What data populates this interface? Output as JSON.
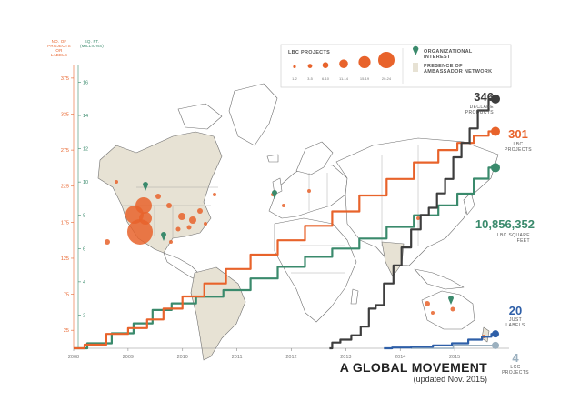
{
  "chart_data": {
    "type": "line",
    "title": "A GLOBAL MOVEMENT",
    "subtitle": "(updated Nov. 2015)",
    "left_axis_title": [
      "NO. OF",
      "PROJECTS",
      "OR",
      "LABELS"
    ],
    "right_axis_title": [
      "SQ. FT.",
      "(MILLIONS)"
    ],
    "x_ticks": [
      "2008",
      "2009",
      "2010",
      "2011",
      "2012",
      "2013",
      "2014",
      "2015"
    ],
    "xlim": [
      2008,
      2015.9
    ],
    "y_left": {
      "ticks": [
        25,
        75,
        125,
        175,
        225,
        275,
        325,
        375
      ],
      "ylim": [
        0,
        390
      ]
    },
    "y_right": {
      "ticks": [
        2,
        4,
        6,
        8,
        10,
        12,
        14,
        16
      ],
      "ylim": [
        0,
        16.9
      ]
    },
    "series": [
      {
        "value_label": "301",
        "label_lines": [
          "LBC",
          "PROJECTS"
        ],
        "color": "#e8632b",
        "axis": "left",
        "points": [
          [
            2008,
            0
          ],
          [
            2008.4,
            5
          ],
          [
            2008.8,
            20
          ],
          [
            2009.2,
            28
          ],
          [
            2009.5,
            40
          ],
          [
            2009.8,
            55
          ],
          [
            2010.2,
            72
          ],
          [
            2010.6,
            90
          ],
          [
            2011,
            110
          ],
          [
            2011.5,
            130
          ],
          [
            2012,
            150
          ],
          [
            2012.5,
            170
          ],
          [
            2013,
            190
          ],
          [
            2013.5,
            212
          ],
          [
            2014,
            235
          ],
          [
            2014.5,
            258
          ],
          [
            2014.9,
            275
          ],
          [
            2015.2,
            285
          ],
          [
            2015.5,
            295
          ],
          [
            2015.75,
            301
          ]
        ]
      },
      {
        "value_label": "10,856,352",
        "label_lines": [
          "LBC SQUARE",
          "FEET"
        ],
        "color": "#3a8a6c",
        "axis": "right",
        "points": [
          [
            2008,
            0
          ],
          [
            2008.5,
            0.3
          ],
          [
            2008.9,
            0.9
          ],
          [
            2009.3,
            1.5
          ],
          [
            2009.6,
            2.3
          ],
          [
            2010,
            2.7
          ],
          [
            2010.5,
            3.1
          ],
          [
            2011,
            3.5
          ],
          [
            2011.5,
            4.2
          ],
          [
            2012,
            4.9
          ],
          [
            2012.5,
            5.5
          ],
          [
            2013,
            6.0
          ],
          [
            2013.5,
            6.6
          ],
          [
            2014,
            7.3
          ],
          [
            2014.5,
            8.0
          ],
          [
            2014.9,
            8.6
          ],
          [
            2015.2,
            9.3
          ],
          [
            2015.5,
            10.2
          ],
          [
            2015.75,
            10.86
          ]
        ]
      },
      {
        "value_label": "346",
        "label_lines": [
          "DECLARE",
          "PRODUCTS"
        ],
        "color": "#3d3d3d",
        "axis": "left",
        "points": [
          [
            2012.7,
            0
          ],
          [
            2012.8,
            8
          ],
          [
            2013,
            12
          ],
          [
            2013.2,
            18
          ],
          [
            2013.35,
            30
          ],
          [
            2013.5,
            55
          ],
          [
            2013.6,
            60
          ],
          [
            2013.8,
            90
          ],
          [
            2013.95,
            115
          ],
          [
            2014.1,
            140
          ],
          [
            2014.3,
            165
          ],
          [
            2014.45,
            185
          ],
          [
            2014.6,
            195
          ],
          [
            2014.75,
            215
          ],
          [
            2014.9,
            235
          ],
          [
            2015.05,
            265
          ],
          [
            2015.2,
            285
          ],
          [
            2015.35,
            305
          ],
          [
            2015.5,
            330
          ],
          [
            2015.75,
            346
          ]
        ]
      },
      {
        "value_label": "20",
        "label_lines": [
          "JUST",
          "LABELS"
        ],
        "color": "#2e5fa8",
        "axis": "left",
        "points": [
          [
            2013.7,
            0
          ],
          [
            2014,
            1
          ],
          [
            2014.4,
            2
          ],
          [
            2014.8,
            4
          ],
          [
            2015.1,
            7
          ],
          [
            2015.4,
            12
          ],
          [
            2015.6,
            16
          ],
          [
            2015.75,
            20
          ]
        ]
      },
      {
        "value_label": "4",
        "label_lines": [
          "LCC",
          "PROJECTS"
        ],
        "color": "#9bb0bf",
        "axis": "left",
        "points": [
          [
            2014.2,
            0
          ],
          [
            2015.75,
            4
          ]
        ]
      }
    ],
    "legend": {
      "title": "LBC PROJECTS",
      "bubble_sizes": [
        "1-2",
        "3-5",
        "6-10",
        "11-14",
        "15-19",
        "20-24"
      ],
      "bubble_color": "#e8632b",
      "org_interest": [
        "ORGANIZATIONAL",
        "INTEREST"
      ],
      "org_color": "#3a8a6c",
      "ambassador": [
        "PRESENCE OF",
        "AMBASSADOR NETWORK"
      ],
      "ambassador_color": "#e7e2d4",
      "placement": "top-center"
    },
    "map_colors": {
      "land": "#ffffff",
      "outline": "#6f6f6f",
      "highlight": "#e7e2d4"
    }
  }
}
